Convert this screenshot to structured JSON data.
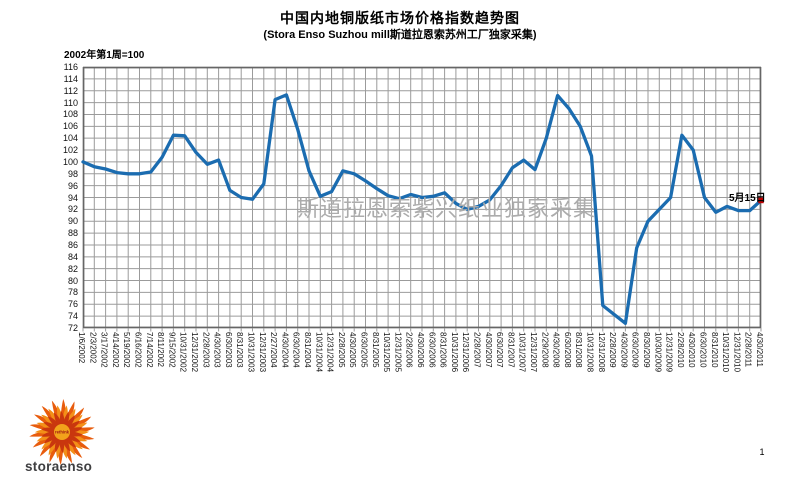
{
  "header": {
    "title": "中国内地铜版纸市场价格指数趋势图",
    "subtitle": "(Stora Enso Suzhou mill斯道拉恩索苏州工厂独家采集)"
  },
  "base_note": "2002年第1周=100",
  "watermark": "斯道拉恩索紫兴纸业独家采集",
  "annotation": {
    "label": "5月15日"
  },
  "logo": {
    "brand": "storaenso",
    "center_label": "rethink"
  },
  "page_number": "1",
  "chart_data": {
    "type": "line",
    "title": "中国内地铜版纸市场价格指数趋势图",
    "subtitle": "(Stora Enso Suzhou mill斯道拉恩索苏州工厂独家采集)",
    "base_note": "2002年第1周=100",
    "ylim": [
      72,
      116
    ],
    "y_tick_step": 2,
    "grid": true,
    "line_color": "#1B6CB0",
    "grid_color": "#9B9B9B",
    "endpoint_marker_color": "#C00000",
    "endpoint_annotation": "5月15日",
    "x_labels": [
      "1/6/2002",
      "2/3/2002",
      "3/17/2002",
      "4/14/2002",
      "5/19/2002",
      "6/16/2002",
      "7/14/2002",
      "8/11/2002",
      "9/15/2002",
      "10/31/2002",
      "12/31/2002",
      "2/28/2003",
      "4/30/2003",
      "6/30/2003",
      "8/31/2003",
      "10/31/2003",
      "12/31/2003",
      "2/27/2004",
      "4/30/2004",
      "6/30/2004",
      "8/31/2004",
      "10/31/2004",
      "12/31/2004",
      "2/28/2005",
      "4/30/2005",
      "6/30/2005",
      "8/31/2005",
      "10/31/2005",
      "12/31/2005",
      "2/28/2006",
      "4/30/2006",
      "6/30/2006",
      "8/31/2006",
      "10/31/2006",
      "12/31/2006",
      "2/28/2007",
      "4/30/2007",
      "6/30/2007",
      "8/31/2007",
      "10/31/2007",
      "12/31/2007",
      "2/29/2008",
      "4/30/2008",
      "6/30/2008",
      "8/31/2008",
      "10/31/2008",
      "12/31/2008",
      "2/28/2009",
      "4/30/2009",
      "6/30/2009",
      "8/30/2009",
      "10/30/2009",
      "12/31/2009",
      "2/28/2010",
      "4/30/2010",
      "6/30/2010",
      "8/31/2010",
      "10/31/2010",
      "12/31/2010",
      "2/28/2011",
      "4/30/2011"
    ],
    "values": [
      100,
      99.2,
      98.8,
      98.2,
      98,
      98,
      98.3,
      100.8,
      104.5,
      104.4,
      101.6,
      99.6,
      100.3,
      95.2,
      94,
      93.7,
      96.3,
      110.5,
      111.3,
      105.5,
      98.5,
      94.2,
      95,
      98.5,
      98,
      96.8,
      95.5,
      94.3,
      93.8,
      94.5,
      94,
      94.2,
      94.8,
      93,
      92,
      92.5,
      93.6,
      96,
      99,
      100.3,
      98.7,
      104,
      111.2,
      109,
      106,
      101,
      75.8,
      74.3,
      72.8,
      85.5,
      90,
      92,
      94,
      104.5,
      102,
      94,
      91.5,
      92.5,
      91.8,
      91.8,
      93.5
    ]
  }
}
